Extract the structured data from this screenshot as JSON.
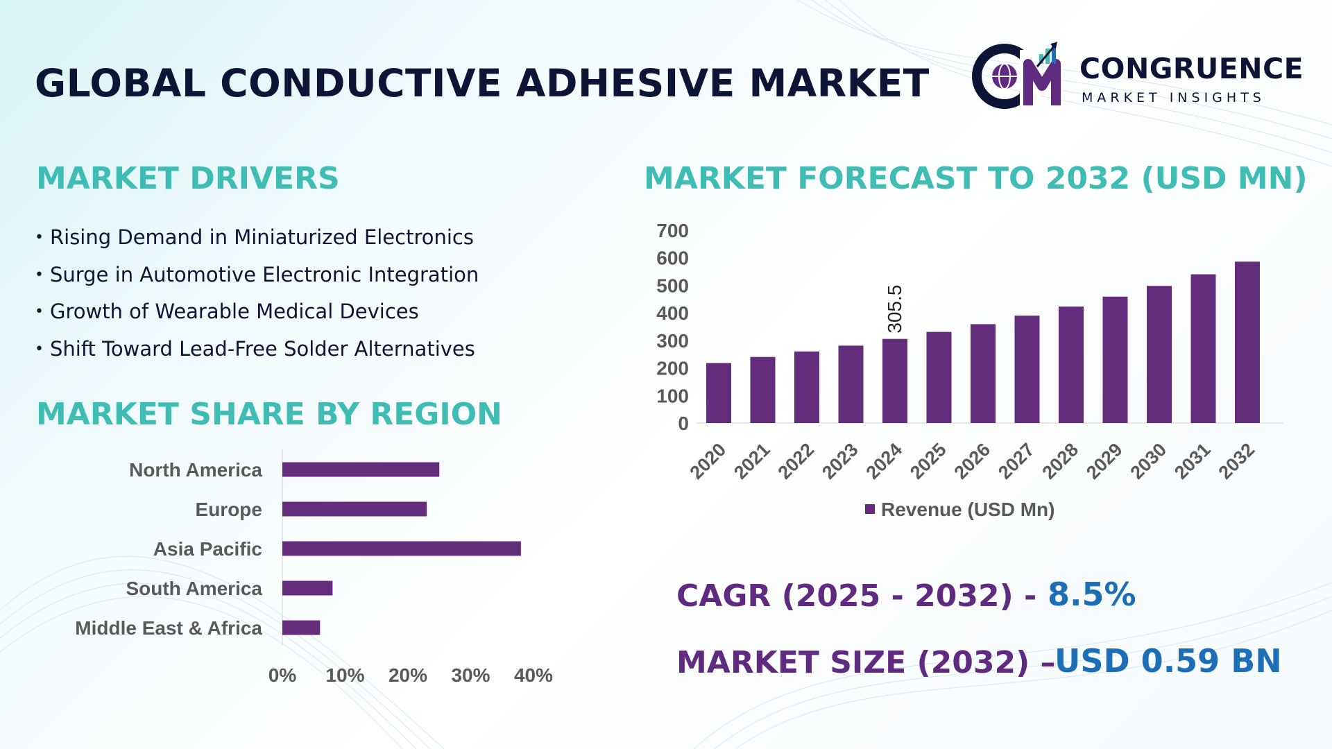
{
  "header": {
    "title": "GLOBAL CONDUCTIVE ADHESIVE MARKET",
    "logo": {
      "name": "CONGRUENCE",
      "tagline": "MARKET INSIGHTS",
      "mark_letters": "CM"
    }
  },
  "drivers": {
    "heading": "MARKET DRIVERS",
    "items": [
      "Rising Demand in Miniaturized Electronics",
      "Surge in Automotive Electronic Integration",
      "Growth of Wearable Medical Devices",
      "Shift Toward Lead-Free Solder Alternatives"
    ]
  },
  "region": {
    "heading": "MARKET SHARE BY REGION"
  },
  "forecast": {
    "heading": "MARKET FORECAST TO 2032 (USD MN)"
  },
  "stats": {
    "cagr_label": "CAGR (2025 - 2032) -",
    "cagr_value": "8.5%",
    "size_label": "MARKET SIZE (2032) –",
    "size_value": "USD 0.59 BN"
  },
  "colors": {
    "bar": "#642d7c",
    "heading_teal": "#3fbcb4",
    "stat_purple": "#5f2a80",
    "stat_blue": "#1c6fb7",
    "title_navy": "#0d1536"
  },
  "chart_data": [
    {
      "type": "bar",
      "orientation": "horizontal",
      "categories": [
        "North America",
        "Europe",
        "Asia Pacific",
        "South America",
        "Middle East & Africa"
      ],
      "values": [
        25,
        23,
        38,
        8,
        6
      ],
      "value_unit": "%",
      "xlim": [
        0,
        40
      ],
      "xticks": [
        "0%",
        "10%",
        "20%",
        "30%",
        "40%"
      ],
      "grid": false
    },
    {
      "type": "bar",
      "orientation": "vertical",
      "categories": [
        "2020",
        "2021",
        "2022",
        "2023",
        "2024",
        "2025",
        "2026",
        "2027",
        "2028",
        "2029",
        "2030",
        "2031",
        "2032"
      ],
      "series": [
        {
          "name": "Revenue (USD Mn)",
          "values": [
            218,
            240,
            260,
            281,
            305.5,
            331,
            359,
            390,
            423,
            459,
            498,
            540,
            586
          ]
        }
      ],
      "data_labels": [
        {
          "category": "2024",
          "text": "305.5"
        }
      ],
      "ylim": [
        0,
        700
      ],
      "yticks": [
        0,
        100,
        200,
        300,
        400,
        500,
        600,
        700
      ],
      "legend": "bottom",
      "grid": false
    }
  ]
}
